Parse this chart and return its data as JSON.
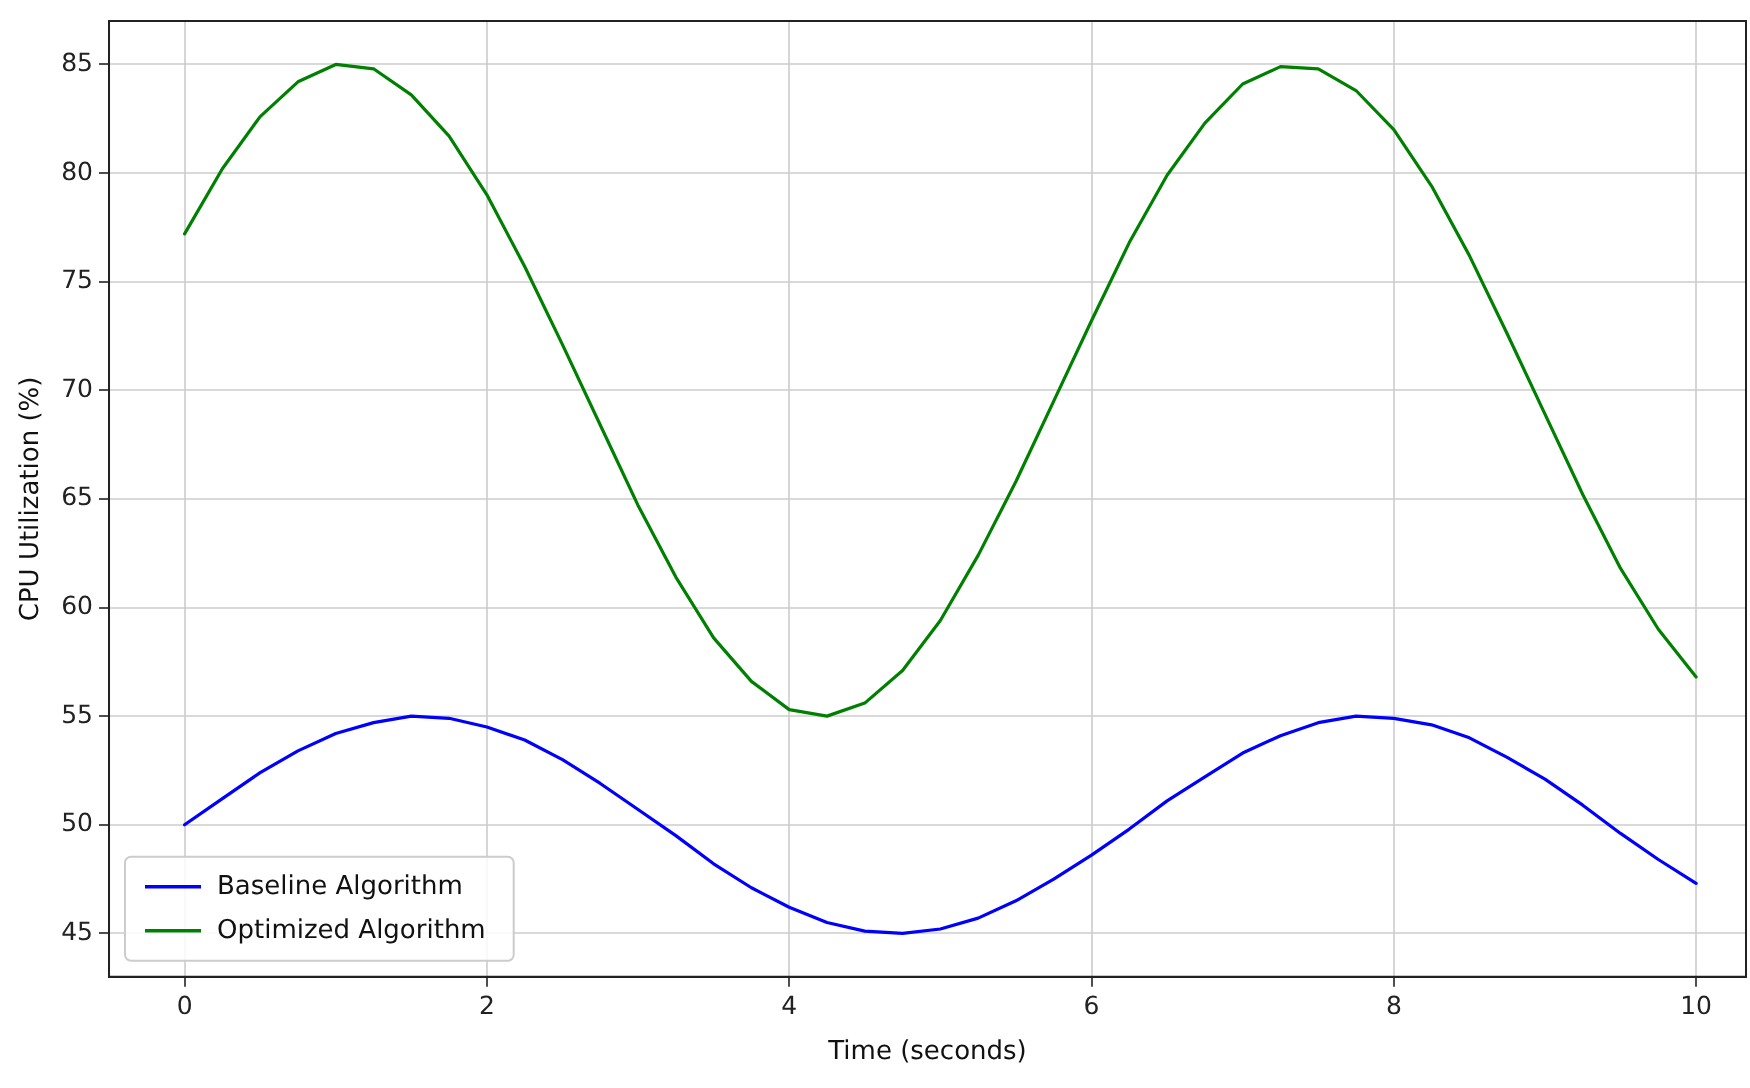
{
  "chart_data": {
    "type": "line",
    "xlabel": "Time (seconds)",
    "ylabel": "CPU Utilization (%)",
    "x": [
      0,
      0.25,
      0.5,
      0.75,
      1,
      1.25,
      1.5,
      1.75,
      2,
      2.25,
      2.5,
      2.75,
      3,
      3.25,
      3.5,
      3.75,
      4,
      4.25,
      4.5,
      4.75,
      5,
      5.25,
      5.5,
      5.75,
      6,
      6.25,
      6.5,
      6.75,
      7,
      7.25,
      7.5,
      7.75,
      8,
      8.25,
      8.5,
      8.75,
      9,
      9.25,
      9.5,
      9.75,
      10
    ],
    "series": [
      {
        "name": "Baseline Algorithm",
        "color": "#0000ff",
        "values": [
          50.0,
          51.2,
          52.4,
          53.4,
          54.2,
          54.7,
          55.0,
          54.9,
          54.5,
          53.9,
          53.0,
          51.9,
          50.7,
          49.5,
          48.2,
          47.1,
          46.2,
          45.5,
          45.1,
          45.0,
          45.2,
          45.7,
          46.5,
          47.5,
          48.6,
          49.8,
          51.1,
          52.2,
          53.3,
          54.1,
          54.7,
          55.0,
          54.9,
          54.6,
          54.0,
          53.1,
          52.1,
          50.9,
          49.6,
          48.4,
          47.3
        ]
      },
      {
        "name": "Optimized Algorithm",
        "color": "#008000",
        "values": [
          77.2,
          80.2,
          82.6,
          84.2,
          85.0,
          84.8,
          83.6,
          81.7,
          79.0,
          75.7,
          72.1,
          68.4,
          64.7,
          61.4,
          58.6,
          56.6,
          55.3,
          55.0,
          55.6,
          57.1,
          59.4,
          62.4,
          65.8,
          69.5,
          73.2,
          76.8,
          79.9,
          82.3,
          84.1,
          84.9,
          84.8,
          83.8,
          82.0,
          79.4,
          76.2,
          72.6,
          68.9,
          65.2,
          61.8,
          59.0,
          56.8
        ]
      }
    ],
    "xlim": [
      -0.5,
      10.33
    ],
    "xticks": [
      0,
      2,
      4,
      6,
      8,
      10
    ],
    "ylim": [
      43,
      87
    ],
    "yticks": [
      45,
      50,
      55,
      60,
      65,
      70,
      75,
      80,
      85
    ],
    "grid": true,
    "legend": "lower left",
    "marker": "none",
    "line_style": "solid"
  }
}
